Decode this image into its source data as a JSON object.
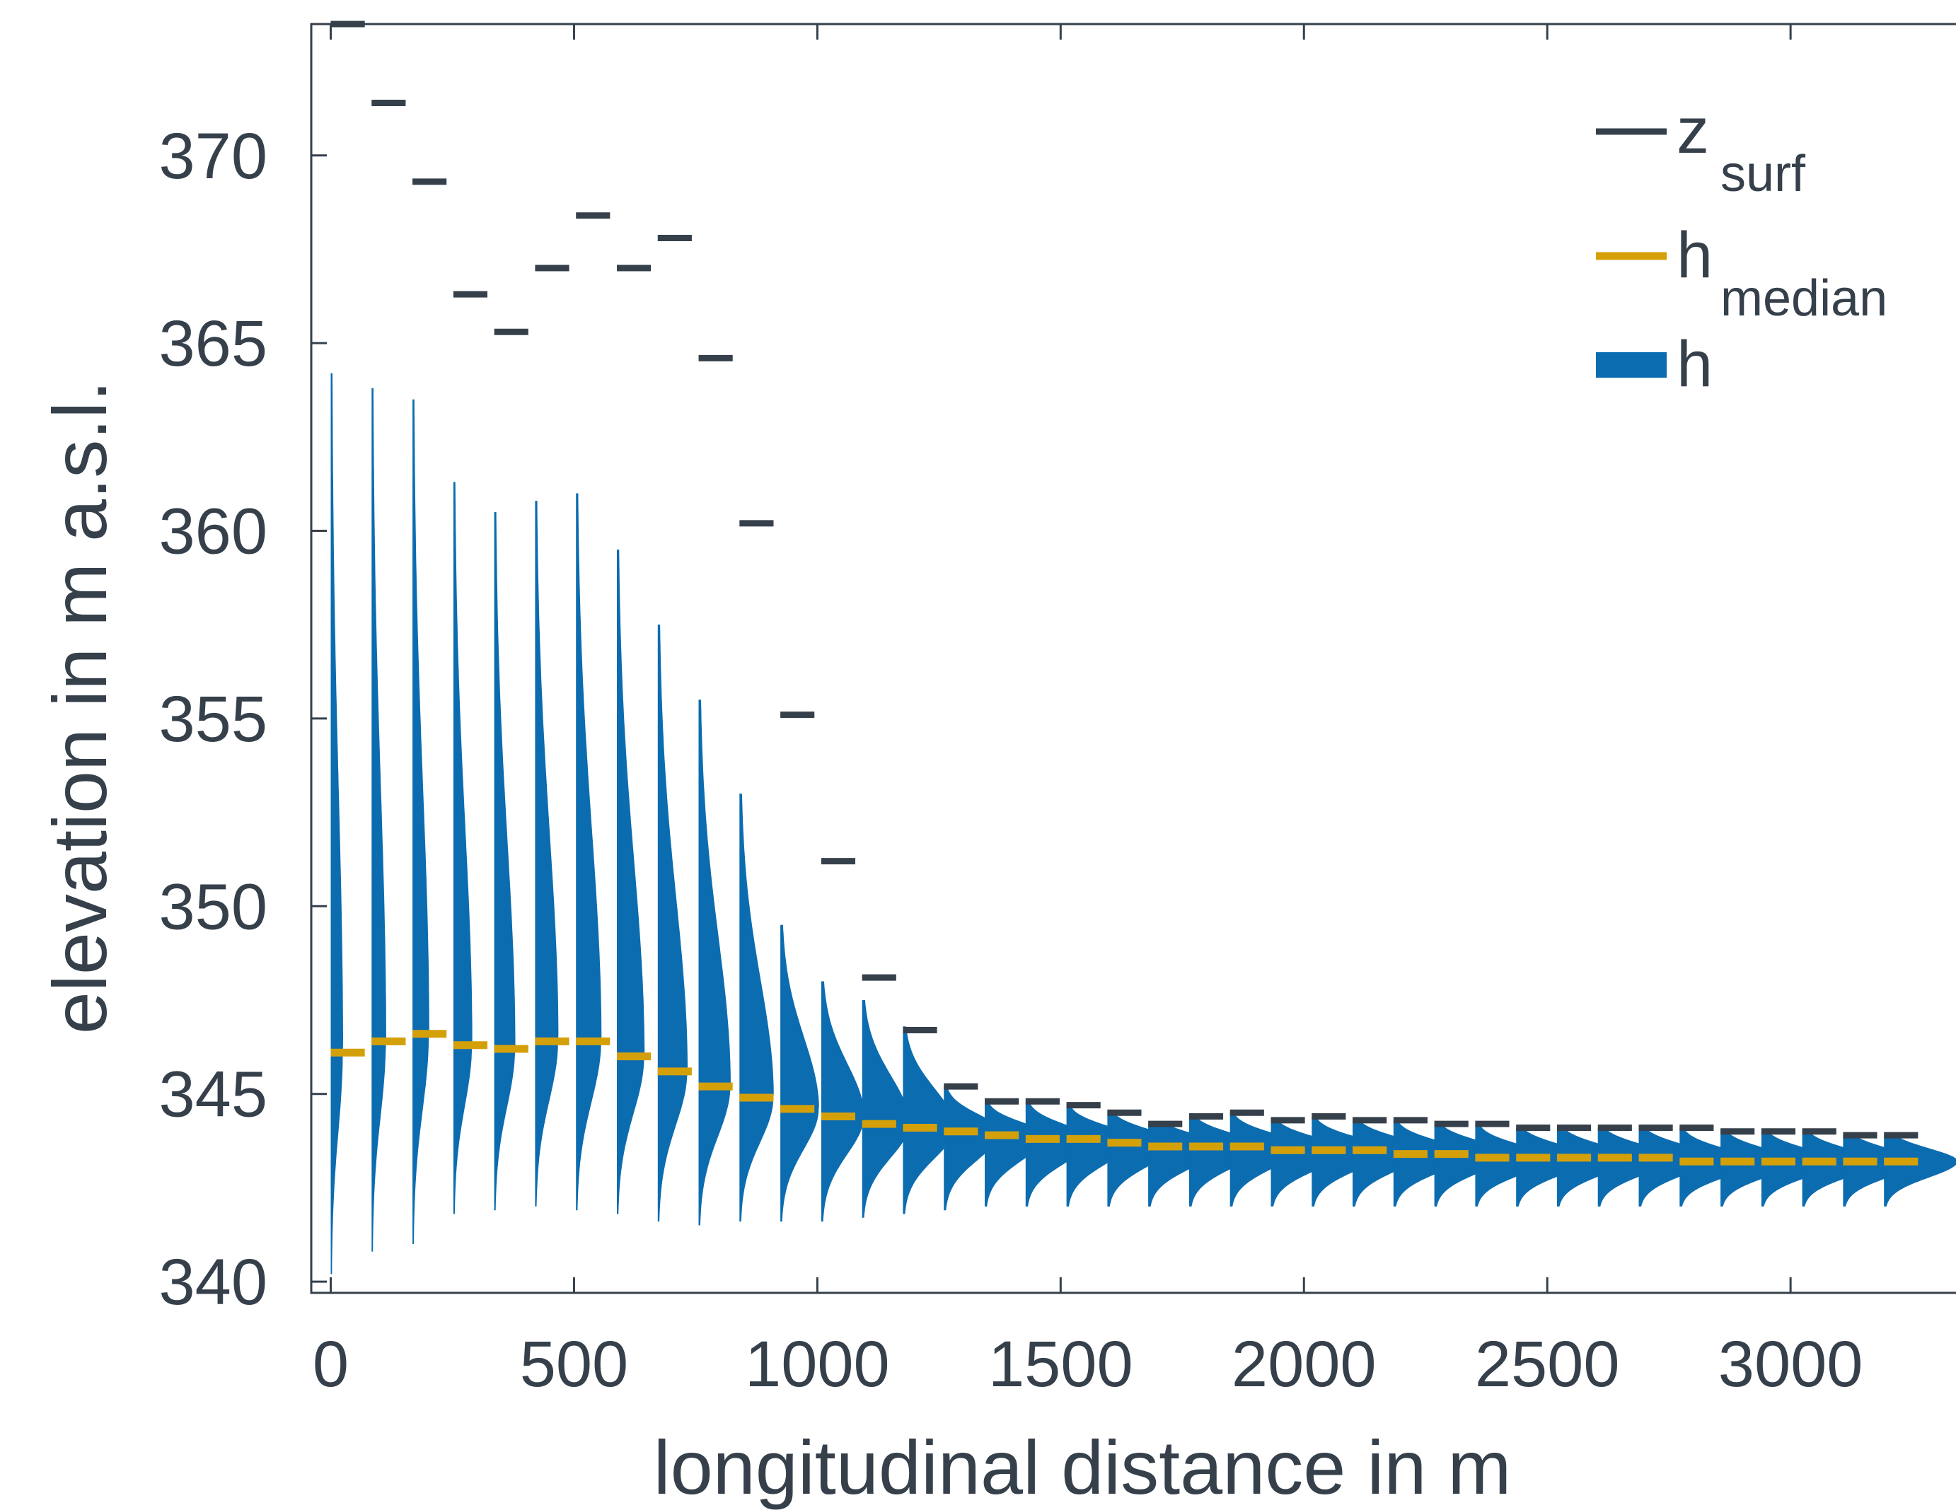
{
  "colors": {
    "axis": "#36404b",
    "z_surf": "#36404b",
    "h_median": "#d4a00a",
    "h": "#0b6cb0"
  },
  "chart_data": {
    "type": "line",
    "xlabel": "longitudinal distance in m",
    "ylabel": "elevation in m a.s.l.",
    "xlim": [
      -40,
      3340
    ],
    "ylim": [
      339.7,
      373.5
    ],
    "xticks": [
      0,
      500,
      1000,
      1500,
      2000,
      2500,
      3000
    ],
    "xtick_labels": [
      "0",
      "500",
      "1000",
      "1500",
      "2000",
      "2500",
      "3000"
    ],
    "yticks": [
      340,
      345,
      350,
      355,
      360,
      365,
      370
    ],
    "ytick_labels": [
      "340",
      "345",
      "350",
      "355",
      "360",
      "365",
      "370"
    ],
    "grid": false,
    "legend_position": "top-right",
    "legend": [
      {
        "key": "z_surf",
        "main": "z",
        "sub": "surf"
      },
      {
        "key": "h_median",
        "main": "h",
        "sub": "median"
      },
      {
        "key": "h",
        "main": "h",
        "sub": ""
      }
    ],
    "segment_width": 70,
    "x_starts": [
      0,
      84,
      168,
      252,
      336,
      420,
      504,
      588,
      672,
      756,
      840,
      924,
      1008,
      1092,
      1176,
      1260,
      1344,
      1428,
      1512,
      1596,
      1680,
      1764,
      1848,
      1932,
      2016,
      2100,
      2184,
      2268,
      2352,
      2436,
      2520,
      2604,
      2688,
      2772,
      2856,
      2940,
      3024,
      3108,
      3192
    ],
    "series": [
      {
        "name": "z_surf",
        "style": "segments",
        "values": [
          373.5,
          371.4,
          369.3,
          366.3,
          365.3,
          367.0,
          368.4,
          367.0,
          367.8,
          364.6,
          360.2,
          355.1,
          351.2,
          348.1,
          346.7,
          345.2,
          344.8,
          344.8,
          344.7,
          344.5,
          344.2,
          344.4,
          344.5,
          344.3,
          344.4,
          344.3,
          344.3,
          344.2,
          344.2,
          344.1,
          344.1,
          344.1,
          344.1,
          344.1,
          344.0,
          344.0,
          344.0,
          343.9,
          343.9
        ]
      },
      {
        "name": "h_median",
        "style": "dashed-segments",
        "values": [
          346.1,
          346.4,
          346.6,
          346.3,
          346.2,
          346.4,
          346.4,
          346.0,
          345.6,
          345.2,
          344.9,
          344.6,
          344.4,
          344.2,
          344.1,
          344.0,
          343.9,
          343.8,
          343.8,
          343.7,
          343.6,
          343.6,
          343.6,
          343.5,
          343.5,
          343.5,
          343.4,
          343.4,
          343.3,
          343.3,
          343.3,
          343.3,
          343.3,
          343.2,
          343.2,
          343.2,
          343.2,
          343.2,
          343.2
        ]
      },
      {
        "name": "h",
        "style": "histogram",
        "mode": [
          346.1,
          346.4,
          346.6,
          346.3,
          346.2,
          346.4,
          346.4,
          346.0,
          345.6,
          345.2,
          344.9,
          344.6,
          344.4,
          344.2,
          344.1,
          344.0,
          343.9,
          343.8,
          343.8,
          343.7,
          343.6,
          343.6,
          343.6,
          343.5,
          343.5,
          343.5,
          343.4,
          343.4,
          343.3,
          343.3,
          343.3,
          343.3,
          343.3,
          343.2,
          343.2,
          343.2,
          343.2,
          343.2,
          343.2
        ],
        "min": [
          340.2,
          340.8,
          341.0,
          341.8,
          341.9,
          342.0,
          341.9,
          341.8,
          341.6,
          341.5,
          341.6,
          341.6,
          341.6,
          341.7,
          341.8,
          341.9,
          342.0,
          342.0,
          342.0,
          342.0,
          342.0,
          342.0,
          342.0,
          342.0,
          342.0,
          342.0,
          342.0,
          342.0,
          342.0,
          342.0,
          342.0,
          342.0,
          342.0,
          342.0,
          342.0,
          342.0,
          342.0,
          342.0,
          342.0
        ],
        "max": [
          364.2,
          363.8,
          363.5,
          361.3,
          360.5,
          360.8,
          361.0,
          359.5,
          357.5,
          355.5,
          353.0,
          349.5,
          348.0,
          347.5,
          346.8,
          345.2,
          344.8,
          344.8,
          344.7,
          344.5,
          344.2,
          344.4,
          344.5,
          344.3,
          344.4,
          344.3,
          344.3,
          344.2,
          344.2,
          344.1,
          344.1,
          344.1,
          344.1,
          344.1,
          344.0,
          344.0,
          344.0,
          343.9,
          343.9
        ],
        "peak_width": [
          10,
          12,
          14,
          16,
          18,
          20,
          22,
          24,
          26,
          28,
          30,
          34,
          38,
          42,
          46,
          50,
          54,
          58,
          60,
          62,
          64,
          64,
          64,
          66,
          66,
          66,
          66,
          66,
          66,
          66,
          66,
          66,
          66,
          66,
          66,
          66,
          66,
          66,
          66
        ]
      }
    ]
  }
}
